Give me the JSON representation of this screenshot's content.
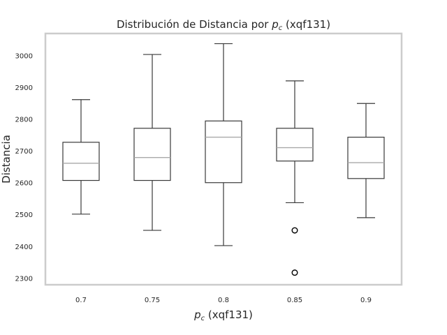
{
  "chart_data": {
    "type": "box",
    "title_prefix": "Distribución de Distancia por ",
    "title_var": "p",
    "title_sub": "c",
    "title_suffix": " (xqf131)",
    "xlabel_var": "p",
    "xlabel_sub": "c",
    "xlabel_suffix": " (xqf131)",
    "ylabel": "Distancia",
    "ylim": [
      2280,
      3070
    ],
    "yticks": [
      2300,
      2400,
      2500,
      2600,
      2700,
      2800,
      2900,
      3000
    ],
    "categories": [
      "0.7",
      "0.75",
      "0.8",
      "0.85",
      "0.9"
    ],
    "boxes": [
      {
        "label": "0.7",
        "whisker_low": 2502,
        "q1": 2608,
        "median": 2662,
        "q3": 2728,
        "whisker_high": 2862,
        "outliers": []
      },
      {
        "label": "0.75",
        "whisker_low": 2451,
        "q1": 2608,
        "median": 2680,
        "q3": 2772,
        "whisker_high": 3004,
        "outliers": []
      },
      {
        "label": "0.8",
        "whisker_low": 2403,
        "q1": 2601,
        "median": 2744,
        "q3": 2795,
        "whisker_high": 3038,
        "outliers": []
      },
      {
        "label": "0.85",
        "whisker_low": 2538,
        "q1": 2669,
        "median": 2711,
        "q3": 2772,
        "whisker_high": 2921,
        "outliers": [
          2451,
          2318
        ]
      },
      {
        "label": "0.9",
        "whisker_low": 2491,
        "q1": 2614,
        "median": 2664,
        "q3": 2744,
        "whisker_high": 2850,
        "outliers": []
      }
    ],
    "grid": false,
    "colors": {
      "box": "#3a3a3a",
      "median": "#a9a9a9",
      "frame": "#cccccc",
      "text": "#262626"
    }
  }
}
